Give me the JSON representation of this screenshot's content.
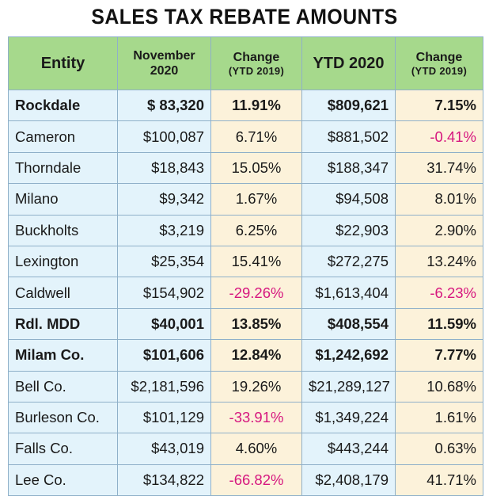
{
  "title": "SALES TAX REBATE AMOUNTS",
  "colors": {
    "header_green": "#a6d98c",
    "cell_blue": "#e3f3fb",
    "cell_cream": "#fcf2da",
    "negative": "#d6177f"
  },
  "headers": {
    "entity": "Entity",
    "month_line1": "November",
    "month_line2": "2020",
    "change1_line1": "Change",
    "change1_line2": "(YTD 2019)",
    "ytd": "YTD 2020",
    "change2_line1": "Change",
    "change2_line2": "(YTD 2019)"
  },
  "rows": [
    {
      "entity": "Rockdale",
      "nov": "$ 83,320",
      "chg": "11.91%",
      "ytd": "$809,621",
      "chg2": "7.15%",
      "bold": true
    },
    {
      "entity": "Cameron",
      "nov": "$100,087",
      "chg": "6.71%",
      "ytd": "$881,502",
      "chg2": "-0.41%",
      "bold": false
    },
    {
      "entity": "Thorndale",
      "nov": "$18,843",
      "chg": "15.05%",
      "ytd": "$188,347",
      "chg2": "31.74%",
      "bold": false
    },
    {
      "entity": "Milano",
      "nov": "$9,342",
      "chg": "1.67%",
      "ytd": "$94,508",
      "chg2": "8.01%",
      "bold": false
    },
    {
      "entity": "Buckholts",
      "nov": "$3,219",
      "chg": "6.25%",
      "ytd": "$22,903",
      "chg2": "2.90%",
      "bold": false
    },
    {
      "entity": "Lexington",
      "nov": "$25,354",
      "chg": "15.41%",
      "ytd": "$272,275",
      "chg2": "13.24%",
      "bold": false
    },
    {
      "entity": "Caldwell",
      "nov": "$154,902",
      "chg": "-29.26%",
      "ytd": "$1,613,404",
      "chg2": "-6.23%",
      "bold": false
    },
    {
      "entity": "Rdl. MDD",
      "nov": "$40,001",
      "chg": "13.85%",
      "ytd": "$408,554",
      "chg2": "11.59%",
      "bold": true
    },
    {
      "entity": "Milam Co.",
      "nov": "$101,606",
      "chg": "12.84%",
      "ytd": "$1,242,692",
      "chg2": "7.77%",
      "bold": true
    },
    {
      "entity": "Bell Co.",
      "nov": "$2,181,596",
      "chg": "19.26%",
      "ytd": "$21,289,127",
      "chg2": "10.68%",
      "bold": false
    },
    {
      "entity": "Burleson Co.",
      "nov": "$101,129",
      "chg": "-33.91%",
      "ytd": "$1,349,224",
      "chg2": "1.61%",
      "bold": false
    },
    {
      "entity": "Falls Co.",
      "nov": "$43,019",
      "chg": "4.60%",
      "ytd": "$443,244",
      "chg2": "0.63%",
      "bold": false
    },
    {
      "entity": "Lee Co.",
      "nov": "$134,822",
      "chg": "-66.82%",
      "ytd": "$2,408,179",
      "chg2": "41.71%",
      "bold": false
    }
  ]
}
